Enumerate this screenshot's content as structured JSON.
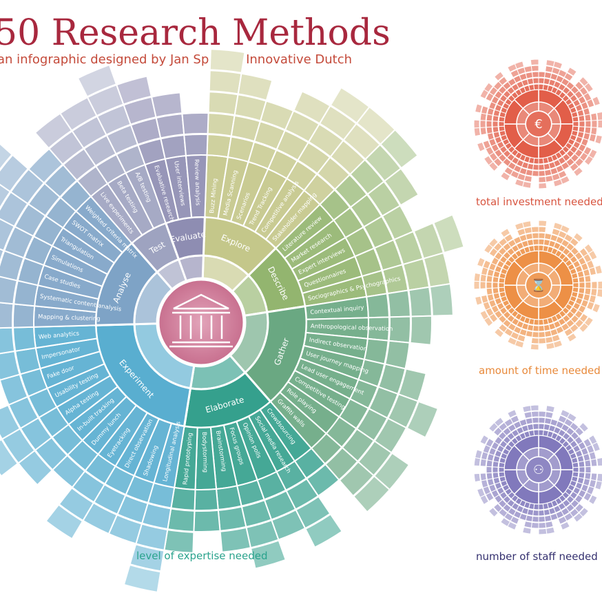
{
  "title": "50 Research Methods",
  "subtitle": "an infographic designed by Jan Spruijt - Innovative Dutch",
  "main_wheel": {
    "center_icon": "museum-building-icon",
    "caption": "level of expertise needed",
    "categories": [
      {
        "name": "Explore",
        "color": "#c4c78a",
        "methods": [
          "Buzz Mining",
          "Media Scanning",
          "Scenarios",
          "Trend Tracking",
          "Competitive analysis",
          "Stakeholder mapping"
        ],
        "levels": [
          5,
          4,
          3,
          4,
          5,
          5
        ]
      },
      {
        "name": "Describe",
        "color": "#93b56f",
        "methods": [
          "Literature review",
          "Market research",
          "Expert interviews",
          "Questionnaires",
          "Sociographics & Psychographics"
        ],
        "levels": [
          5,
          4,
          3,
          5,
          4
        ]
      },
      {
        "name": "Gather",
        "color": "#6aa882",
        "methods": [
          "Contextual inquiry",
          "Anthropological observation",
          "Indirect observation",
          "User journey mapping",
          "Lead user engagement",
          "Competitive testing",
          "Role playing",
          "Graffiti walls"
        ],
        "levels": [
          4,
          3,
          2,
          3,
          4,
          3,
          4,
          4
        ]
      },
      {
        "name": "Elaborate",
        "color": "#35a08d",
        "methods": [
          "Crowdsourcing",
          "Social media research",
          "Opinion polls",
          "Focus groups",
          "Brainstorming",
          "Bodystorming",
          "Rapid prototyping"
        ],
        "levels": [
          2,
          4,
          3,
          4,
          3,
          2,
          3
        ]
      },
      {
        "name": "Experiment",
        "color": "#59aed0",
        "methods": [
          "Longitudinal analysis",
          "Shadowing",
          "Direct observation",
          "Eyetracking",
          "Dummy lunch",
          "In-built tracking",
          "Alpha testing",
          "Usability testing",
          "Fake door",
          "Impersonator",
          "Web analytics"
        ],
        "levels": [
          5,
          3,
          3,
          4,
          2,
          3,
          4,
          3,
          2,
          3,
          4
        ]
      },
      {
        "name": "Analyse",
        "color": "#7ea3c6",
        "methods": [
          "Mapping & clustering",
          "Systematic content analysis",
          "Case studies",
          "Simulations",
          "Triangulation",
          "SWOT matrix",
          "Weighted criteria matrix"
        ],
        "levels": [
          3,
          4,
          4,
          5,
          4,
          5,
          3
        ]
      },
      {
        "name": "Test",
        "color": "#9ea3c0",
        "methods": [
          "Live experiments",
          "Beta testing",
          "A/B testing"
        ],
        "levels": [
          4,
          4,
          5
        ]
      },
      {
        "name": "Evaluate",
        "color": "#8e8db2",
        "methods": [
          "Evaluative research",
          "User interviews",
          "Review analysis"
        ],
        "levels": [
          4,
          3,
          2
        ]
      }
    ]
  },
  "small_wheels": [
    {
      "caption": "total investment needed",
      "icon": "money-bag-icon",
      "symbol": "€",
      "color": "#e0563f"
    },
    {
      "caption": "amount of time needed",
      "icon": "hourglass-icon",
      "symbol": "⌛",
      "color": "#ec8a3c"
    },
    {
      "caption": "number of staff needed",
      "icon": "people-icon",
      "symbol": "⚇",
      "color": "#7a72b8"
    }
  ]
}
